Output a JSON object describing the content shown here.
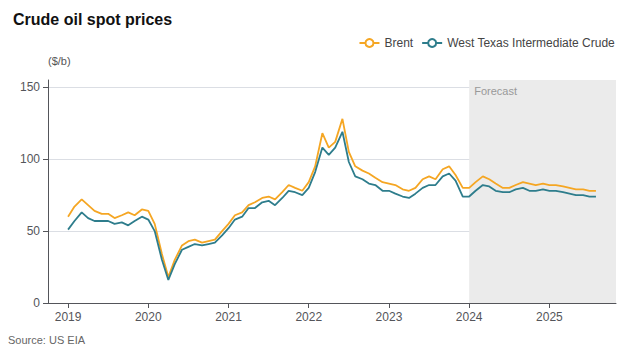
{
  "chart_data": {
    "type": "line",
    "title": "Crude oil spot prices",
    "ylabel": "($/b)",
    "source": "Source: US EIA",
    "x": [
      2019.0,
      2019.08,
      2019.17,
      2019.25,
      2019.33,
      2019.42,
      2019.5,
      2019.58,
      2019.67,
      2019.75,
      2019.83,
      2019.92,
      2020.0,
      2020.08,
      2020.17,
      2020.25,
      2020.33,
      2020.42,
      2020.5,
      2020.58,
      2020.67,
      2020.75,
      2020.83,
      2020.92,
      2021.0,
      2021.08,
      2021.17,
      2021.25,
      2021.33,
      2021.42,
      2021.5,
      2021.58,
      2021.67,
      2021.75,
      2021.83,
      2021.92,
      2022.0,
      2022.08,
      2022.17,
      2022.25,
      2022.33,
      2022.42,
      2022.5,
      2022.58,
      2022.67,
      2022.75,
      2022.83,
      2022.92,
      2023.0,
      2023.08,
      2023.17,
      2023.25,
      2023.33,
      2023.42,
      2023.5,
      2023.58,
      2023.67,
      2023.75,
      2023.83,
      2023.92,
      2024.0,
      2024.08,
      2024.17,
      2024.25,
      2024.33,
      2024.42,
      2024.5,
      2024.58,
      2024.67,
      2024.75,
      2024.83,
      2024.92,
      2025.0,
      2025.08,
      2025.17,
      2025.25,
      2025.33,
      2025.42,
      2025.5,
      2025.58
    ],
    "series": [
      {
        "name": "Brent",
        "color": "#F5A623",
        "values": [
          60,
          67,
          72,
          68,
          64,
          62,
          62,
          59,
          61,
          63,
          61,
          65,
          64,
          55,
          34,
          18,
          30,
          40,
          43,
          44,
          42,
          43,
          44,
          50,
          55,
          61,
          63,
          68,
          70,
          73,
          74,
          72,
          77,
          82,
          80,
          78,
          84,
          95,
          118,
          108,
          112,
          128,
          105,
          95,
          92,
          90,
          87,
          84,
          83,
          82,
          79,
          78,
          80,
          86,
          88,
          86,
          93,
          95,
          89,
          80,
          80,
          84,
          88,
          86,
          83,
          80,
          80,
          82,
          84,
          83,
          82,
          83,
          82,
          82,
          81,
          80,
          79,
          79,
          78,
          78
        ]
      },
      {
        "name": "West Texas Intermediate Crude",
        "color": "#2E7D8C",
        "values": [
          51,
          57,
          63,
          59,
          57,
          57,
          57,
          55,
          56,
          54,
          57,
          60,
          58,
          50,
          30,
          16,
          27,
          37,
          39,
          41,
          40,
          41,
          42,
          47,
          52,
          58,
          60,
          66,
          66,
          70,
          71,
          68,
          73,
          78,
          77,
          75,
          80,
          91,
          108,
          103,
          108,
          119,
          98,
          88,
          86,
          83,
          82,
          78,
          78,
          76,
          74,
          73,
          76,
          80,
          82,
          82,
          88,
          90,
          85,
          74,
          74,
          78,
          82,
          81,
          78,
          77,
          77,
          79,
          80,
          78,
          78,
          79,
          78,
          78,
          77,
          76,
          75,
          75,
          74,
          74
        ]
      }
    ],
    "shaded_regions": [
      {
        "from": 2024.0,
        "label": "Forecast",
        "color": "#EBEBEB"
      }
    ],
    "xlim": [
      2018.75,
      2025.83
    ],
    "xticks": [
      2019,
      2020,
      2021,
      2022,
      2023,
      2024,
      2025
    ],
    "ylim": [
      0,
      155
    ],
    "yticks": [
      0,
      50,
      100,
      150
    ],
    "grid": true,
    "legend": "upper right"
  }
}
